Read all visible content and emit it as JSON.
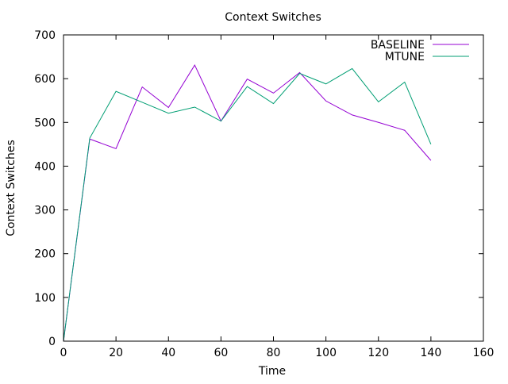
{
  "chart_data": {
    "type": "line",
    "title": "Context Switches",
    "xlabel": "Time",
    "ylabel": "Context Switches",
    "xlim": [
      0,
      160
    ],
    "ylim": [
      0,
      700
    ],
    "xticks": [
      0,
      20,
      40,
      60,
      80,
      100,
      120,
      140,
      160
    ],
    "yticks": [
      0,
      100,
      200,
      300,
      400,
      500,
      600,
      700
    ],
    "grid": false,
    "legend_position": "top-right",
    "series": [
      {
        "name": "BASELINE",
        "color": "#9400d3",
        "x": [
          0,
          10,
          20,
          30,
          40,
          50,
          60,
          70,
          80,
          90,
          100,
          110,
          120,
          130,
          140
        ],
        "y": [
          0,
          462,
          440,
          581,
          534,
          631,
          503,
          599,
          567,
          614,
          549,
          517,
          500,
          482,
          413
        ]
      },
      {
        "name": "MTUNE",
        "color": "#009e73",
        "x": [
          0,
          10,
          20,
          30,
          40,
          50,
          60,
          70,
          80,
          90,
          100,
          110,
          120,
          130,
          140
        ],
        "y": [
          0,
          464,
          571,
          546,
          521,
          535,
          503,
          582,
          543,
          612,
          588,
          623,
          547,
          592,
          450
        ]
      }
    ]
  }
}
